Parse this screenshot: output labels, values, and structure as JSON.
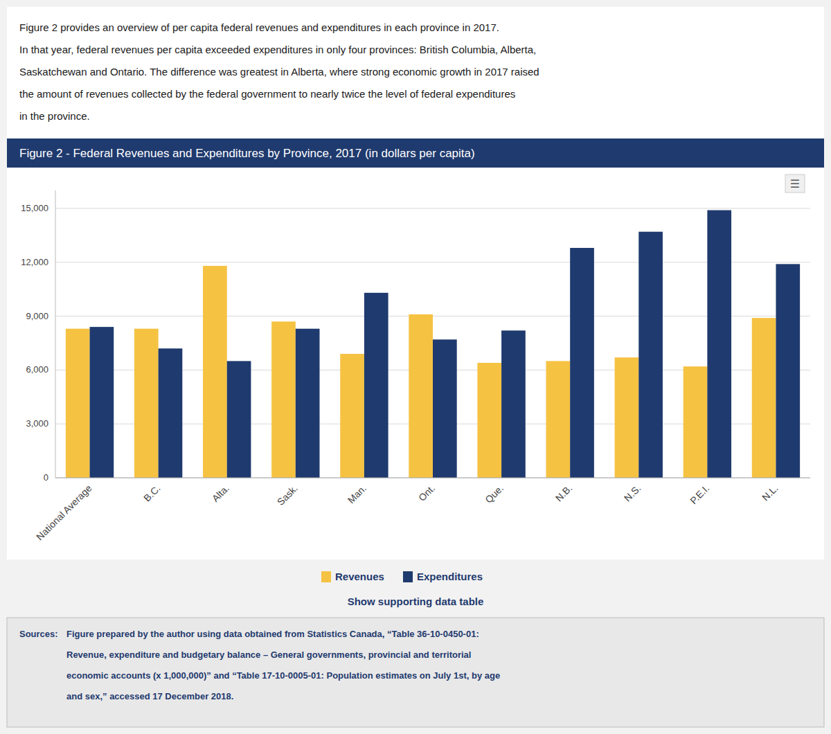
{
  "chart_data": {
    "type": "bar",
    "title": "Figure 2 - Federal Revenues and Expenditures by Province, 2017 (in dollars per capita)",
    "categories": [
      "National Average",
      "B.C.",
      "Alta.",
      "Sask.",
      "Man.",
      "Ont.",
      "Que.",
      "N.B.",
      "N.S.",
      "P.E.I.",
      "N.L."
    ],
    "series": [
      {
        "name": "Revenues",
        "color": "#F5C242",
        "values": [
          8300,
          8300,
          11800,
          8700,
          6900,
          9100,
          6400,
          6500,
          6700,
          6200,
          8900
        ]
      },
      {
        "name": "Expenditures",
        "color": "#1F3A6E",
        "values": [
          8400,
          7200,
          6500,
          8300,
          10300,
          7700,
          8200,
          12800,
          13700,
          14900,
          11900
        ]
      }
    ],
    "ylim": [
      0,
      16000
    ],
    "yticks": [
      0,
      {
        "value": 3000,
        "label": "3,000"
      },
      {
        "value": 6000,
        "label": "6,000"
      },
      {
        "value": 9000,
        "label": "9,000"
      },
      {
        "value": 12000,
        "label": "12,000"
      },
      {
        "value": 15000,
        "label": "15,000"
      }
    ],
    "grid": true,
    "legend": "bottom",
    "annotations": [
      "Figure 2 provides an overview of per capita federal revenues and expenditures in each province in 2017.",
      "In that year, federal revenues per capita exceeded expenditures in only four provinces: British Columbia, Alberta,",
      "Saskatchewan and Ontario. The difference was greatest in Alberta, where strong economic growth in 2017 raised",
      "the amount of revenues collected by the federal government to nearly twice the level of federal expenditures",
      "in the province.",
      "Show supporting data table",
      "Sources:",
      "Figure prepared by the author using data obtained from Statistics Canada, “Table 36-10-0450-01:",
      "Revenue, expenditure and budgetary balance – General governments, provincial and territorial",
      "economic accounts (x 1,000,000)” and “Table 17-10-0005-01: Population estimates on July 1st, by age",
      "and sex,” accessed 17 December 2018.",
      "☰"
    ]
  }
}
